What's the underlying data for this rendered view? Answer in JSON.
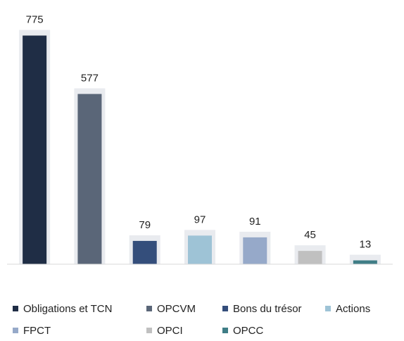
{
  "chart_data": {
    "type": "bar",
    "categories": [
      "Obligations et TCN",
      "OPCVM",
      "Bons du trésor",
      "Actions",
      "FPCT",
      "OPCI",
      "OPCC"
    ],
    "values": [
      775,
      577,
      79,
      97,
      91,
      45,
      13
    ],
    "colors": [
      "#1f2d45",
      "#5a6678",
      "#344e7b",
      "#9ec3d6",
      "#96a9c9",
      "#c0c0c0",
      "#3f7d86"
    ],
    "ylim": [
      0,
      800
    ],
    "legend": "bottom"
  }
}
